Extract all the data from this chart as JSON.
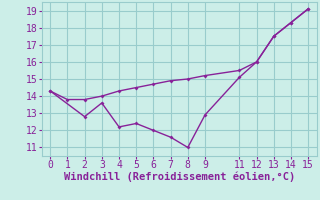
{
  "line1_x": [
    0,
    1,
    2,
    3,
    4,
    5,
    6,
    7,
    8,
    9,
    11,
    12,
    13,
    14,
    15
  ],
  "line1_y": [
    14.3,
    13.8,
    13.8,
    14.0,
    14.3,
    14.5,
    14.7,
    14.9,
    15.0,
    15.2,
    15.5,
    16.0,
    17.5,
    18.3,
    19.1
  ],
  "line2_x": [
    0,
    2,
    3,
    4,
    5,
    6,
    7,
    8,
    9,
    11,
    12,
    13,
    14,
    15
  ],
  "line2_y": [
    14.3,
    12.8,
    13.6,
    12.2,
    12.4,
    12.0,
    11.6,
    11.0,
    12.9,
    15.1,
    16.0,
    17.5,
    18.3,
    19.1
  ],
  "line_color": "#882299",
  "bg_color": "#cceee8",
  "grid_color": "#99cccc",
  "xlabel": "Windchill (Refroidissement éolien,°C)",
  "xlabel_color": "#882299",
  "xlabel_fontsize": 7.5,
  "xticks": [
    0,
    1,
    2,
    3,
    4,
    5,
    6,
    7,
    8,
    9,
    11,
    12,
    13,
    14,
    15
  ],
  "yticks": [
    11,
    12,
    13,
    14,
    15,
    16,
    17,
    18,
    19
  ],
  "ylim": [
    10.5,
    19.5
  ],
  "xlim": [
    -0.5,
    15.5
  ],
  "tick_fontsize": 7,
  "tick_color": "#882299"
}
